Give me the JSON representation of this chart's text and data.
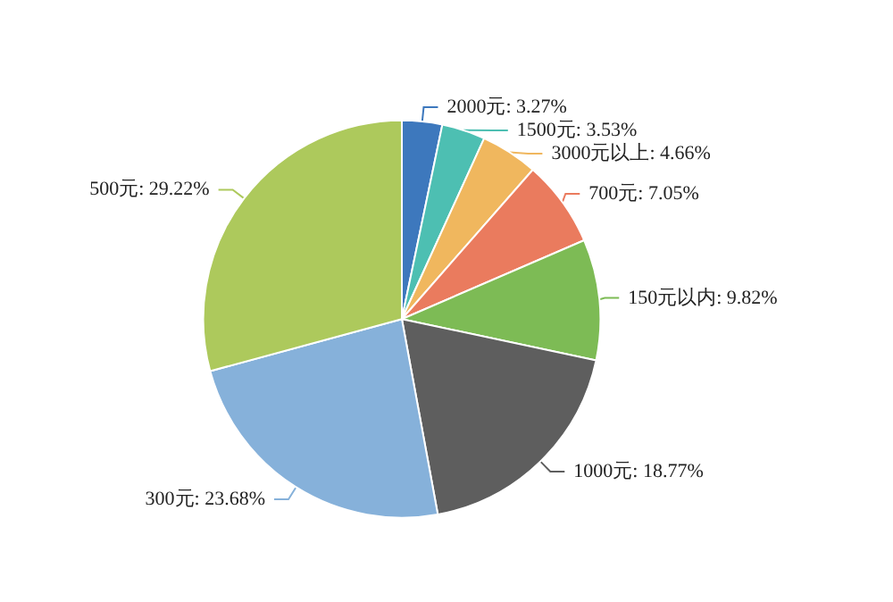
{
  "chart_data": {
    "type": "pie",
    "categories": [
      "2000元",
      "1500元",
      "3000元以上",
      "700元",
      "150元以内",
      "1000元",
      "300元",
      "500元"
    ],
    "values": [
      3.27,
      3.53,
      4.66,
      7.05,
      9.82,
      18.77,
      23.68,
      29.22
    ],
    "value_labels": [
      ": 3.27%",
      ": 3.53%",
      ": 4.66%",
      ": 7.05%",
      ": 9.82%",
      ": 18.77%",
      ": 23.68%",
      ": 29.22%"
    ],
    "colors": [
      "#3d78bd",
      "#4dbfb2",
      "#f0b75e",
      "#ea7b5e",
      "#7dbb55",
      "#5e5e5e",
      "#86b1da",
      "#adc95c"
    ],
    "legend": false
  }
}
